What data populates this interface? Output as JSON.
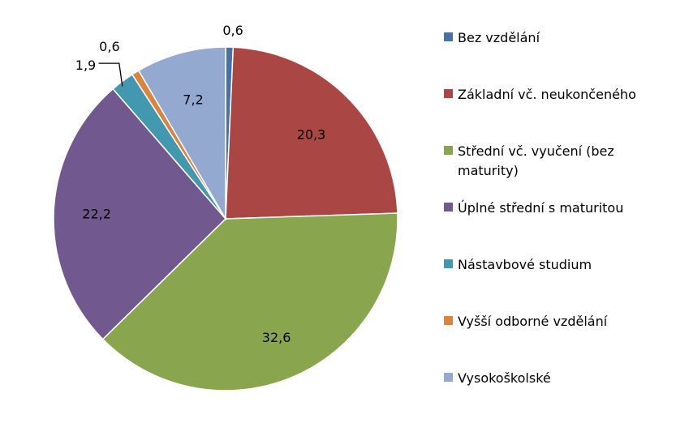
{
  "chart_data": {
    "type": "pie",
    "title": "",
    "slices": [
      {
        "name": "Bez vzdělání",
        "value": 0.6,
        "label": "0,6",
        "color": "#4572A7"
      },
      {
        "name": "Základní vč. neukončeného",
        "value": 20.3,
        "label": "20,3",
        "color": "#AA4643"
      },
      {
        "name": "Střední vč. vyučení (bez maturity)",
        "value": 32.6,
        "label": "32,6",
        "color": "#89A54E"
      },
      {
        "name": "Úplné střední s maturitou",
        "value": 22.2,
        "label": "22,2",
        "color": "#71588F"
      },
      {
        "name": "Nástavbové studium",
        "value": 1.9,
        "label": "1,9",
        "color": "#4198AF"
      },
      {
        "name": "Vyšší odborné vzdělání",
        "value": 0.6,
        "label": "0,6",
        "color": "#DB843D"
      },
      {
        "name": "Vysokoškolské",
        "value": 7.2,
        "label": "7,2",
        "color": "#93A9CF"
      }
    ],
    "legend": {
      "position": "right",
      "entries": [
        {
          "lines": [
            "Bez vzdělání"
          ]
        },
        {
          "lines": [
            "Základní vč. neukončeného"
          ]
        },
        {
          "lines": [
            "Střední vč. vyučení (bez",
            "maturity)"
          ]
        },
        {
          "lines": [
            "Úplné střední s maturitou"
          ]
        },
        {
          "lines": [
            "Nástavbové studium"
          ]
        },
        {
          "lines": [
            "Vyšší odborné vzdělání"
          ]
        },
        {
          "lines": [
            "Vysokoškolské"
          ]
        }
      ]
    }
  }
}
